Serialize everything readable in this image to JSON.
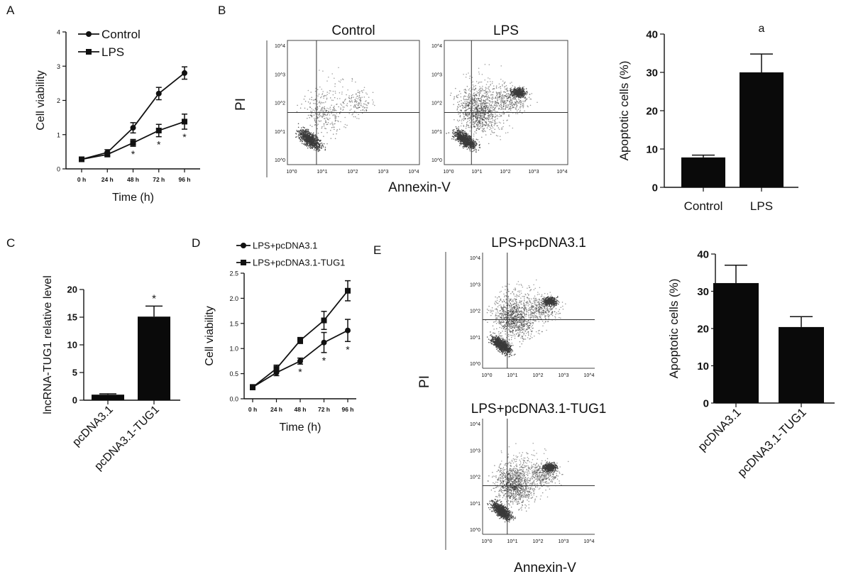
{
  "chart_data": [
    {
      "id": "A",
      "type": "line",
      "panel_label": "A",
      "xlabel": "Time (h)",
      "ylabel": "Cell viability",
      "categories": [
        "0 h",
        "24 h",
        "48 h",
        "72 h",
        "96 h"
      ],
      "ylim": [
        0,
        4
      ],
      "yticks": [
        "0",
        "1",
        "2",
        "3",
        "4"
      ],
      "legend_position": "top-left",
      "series": [
        {
          "name": "Control",
          "marker": "circle",
          "values": [
            0.28,
            0.48,
            1.2,
            2.2,
            2.8
          ],
          "errors": [
            0.06,
            0.08,
            0.15,
            0.18,
            0.18
          ]
        },
        {
          "name": "LPS",
          "marker": "square",
          "values": [
            0.28,
            0.42,
            0.76,
            1.12,
            1.38
          ],
          "errors": [
            0.06,
            0.06,
            0.1,
            0.18,
            0.22
          ]
        }
      ],
      "significance": [
        {
          "category": "48 h",
          "label": "*"
        },
        {
          "category": "72 h",
          "label": "*"
        },
        {
          "category": "96 h",
          "label": "*"
        }
      ]
    },
    {
      "id": "B-flow",
      "type": "scatter",
      "panel_label": "B",
      "xlabel": "Annexin-V",
      "ylabel": "PI",
      "decades": [
        "10^0",
        "10^1",
        "10^2",
        "10^3",
        "10^4"
      ],
      "plots": [
        {
          "title": "Control"
        },
        {
          "title": "LPS"
        }
      ]
    },
    {
      "id": "B-bar",
      "type": "bar",
      "categories": [
        "Control",
        "LPS"
      ],
      "values": [
        7.8,
        30
      ],
      "errors": [
        0.6,
        4.8
      ],
      "ylabel": "Apoptotic cells (%)",
      "ylim": [
        0,
        40
      ],
      "yticks": [
        "0",
        "10",
        "20",
        "30",
        "40"
      ],
      "annotation": "a"
    },
    {
      "id": "C",
      "type": "bar",
      "panel_label": "C",
      "categories": [
        "pcDNA3.1",
        "pcDNA3.1-TUG1"
      ],
      "values": [
        1.0,
        15.1
      ],
      "errors": [
        0.15,
        1.9
      ],
      "ylabel": "lncRNA-TUG1 relative level",
      "ylim": [
        0,
        20
      ],
      "yticks": [
        "0",
        "5",
        "10",
        "15",
        "20"
      ],
      "significance": [
        {
          "category": "pcDNA3.1-TUG1",
          "label": "*"
        }
      ]
    },
    {
      "id": "D",
      "type": "line",
      "panel_label": "D",
      "xlabel": "Time (h)",
      "ylabel": "Cell viability",
      "categories": [
        "0 h",
        "24 h",
        "48 h",
        "72 h",
        "96 h"
      ],
      "ylim": [
        0,
        2.5
      ],
      "yticks": [
        "0.0",
        "0.5",
        "1.0",
        "1.5",
        "2.0",
        "2.5"
      ],
      "legend_position": "top-left",
      "series": [
        {
          "name": "LPS+pcDNA3.1",
          "marker": "circle",
          "values": [
            0.23,
            0.52,
            0.75,
            1.12,
            1.36
          ],
          "errors": [
            0.05,
            0.06,
            0.06,
            0.2,
            0.22
          ]
        },
        {
          "name": "LPS+pcDNA3.1-TUG1",
          "marker": "square",
          "values": [
            0.23,
            0.6,
            1.16,
            1.56,
            2.15
          ],
          "errors": [
            0.05,
            0.07,
            0.06,
            0.18,
            0.2
          ]
        }
      ],
      "significance": [
        {
          "category": "48 h",
          "label": "*"
        },
        {
          "category": "72 h",
          "label": "*"
        },
        {
          "category": "96 h",
          "label": "*"
        }
      ]
    },
    {
      "id": "E-flow",
      "type": "scatter",
      "panel_label": "E",
      "xlabel": "Annexin-V",
      "ylabel": "PI",
      "decades": [
        "10^0",
        "10^1",
        "10^2",
        "10^3",
        "10^4"
      ],
      "plots": [
        {
          "title": "LPS+pcDNA3.1"
        },
        {
          "title": "LPS+pcDNA3.1-TUG1"
        }
      ]
    },
    {
      "id": "E-bar",
      "type": "bar",
      "categories": [
        "pcDNA3.1",
        "pcDNA3.1-TUG1"
      ],
      "values": [
        32.2,
        20.4
      ],
      "errors": [
        4.8,
        2.8
      ],
      "ylabel": "Apoptotic cells (%)",
      "ylim": [
        0,
        40
      ],
      "yticks": [
        "0",
        "10",
        "20",
        "30",
        "40"
      ]
    }
  ]
}
